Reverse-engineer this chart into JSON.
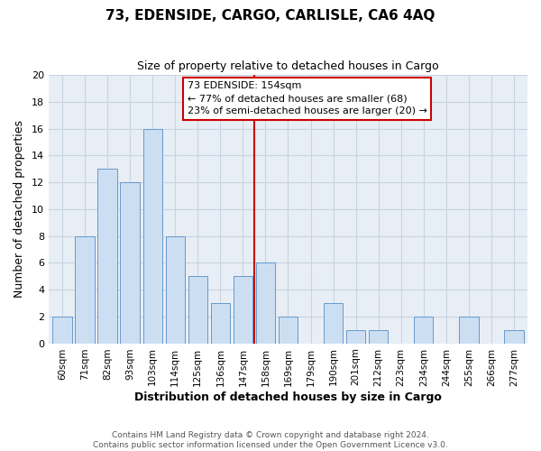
{
  "title": "73, EDENSIDE, CARGO, CARLISLE, CA6 4AQ",
  "subtitle": "Size of property relative to detached houses in Cargo",
  "xlabel": "Distribution of detached houses by size in Cargo",
  "ylabel": "Number of detached properties",
  "bar_labels": [
    "60sqm",
    "71sqm",
    "82sqm",
    "93sqm",
    "103sqm",
    "114sqm",
    "125sqm",
    "136sqm",
    "147sqm",
    "158sqm",
    "169sqm",
    "179sqm",
    "190sqm",
    "201sqm",
    "212sqm",
    "223sqm",
    "234sqm",
    "244sqm",
    "255sqm",
    "266sqm",
    "277sqm"
  ],
  "bar_values": [
    2,
    8,
    13,
    12,
    16,
    8,
    5,
    3,
    5,
    6,
    2,
    0,
    3,
    1,
    1,
    0,
    2,
    0,
    2,
    0,
    1
  ],
  "bar_color": "#ccdff2",
  "bar_edge_color": "#6699cc",
  "vline_x_index": 8.5,
  "vline_color": "#cc0000",
  "annotation_title": "73 EDENSIDE: 154sqm",
  "annotation_line1": "← 77% of detached houses are smaller (68)",
  "annotation_line2": "23% of semi-detached houses are larger (20) →",
  "annotation_box_facecolor": "#ffffff",
  "annotation_box_edgecolor": "#cc0000",
  "ylim": [
    0,
    20
  ],
  "yticks": [
    0,
    2,
    4,
    6,
    8,
    10,
    12,
    14,
    16,
    18,
    20
  ],
  "footer1": "Contains HM Land Registry data © Crown copyright and database right 2024.",
  "footer2": "Contains public sector information licensed under the Open Government Licence v3.0.",
  "fig_bg_color": "#ffffff",
  "plot_bg_color": "#e8eef5",
  "grid_color": "#c8d4e0"
}
